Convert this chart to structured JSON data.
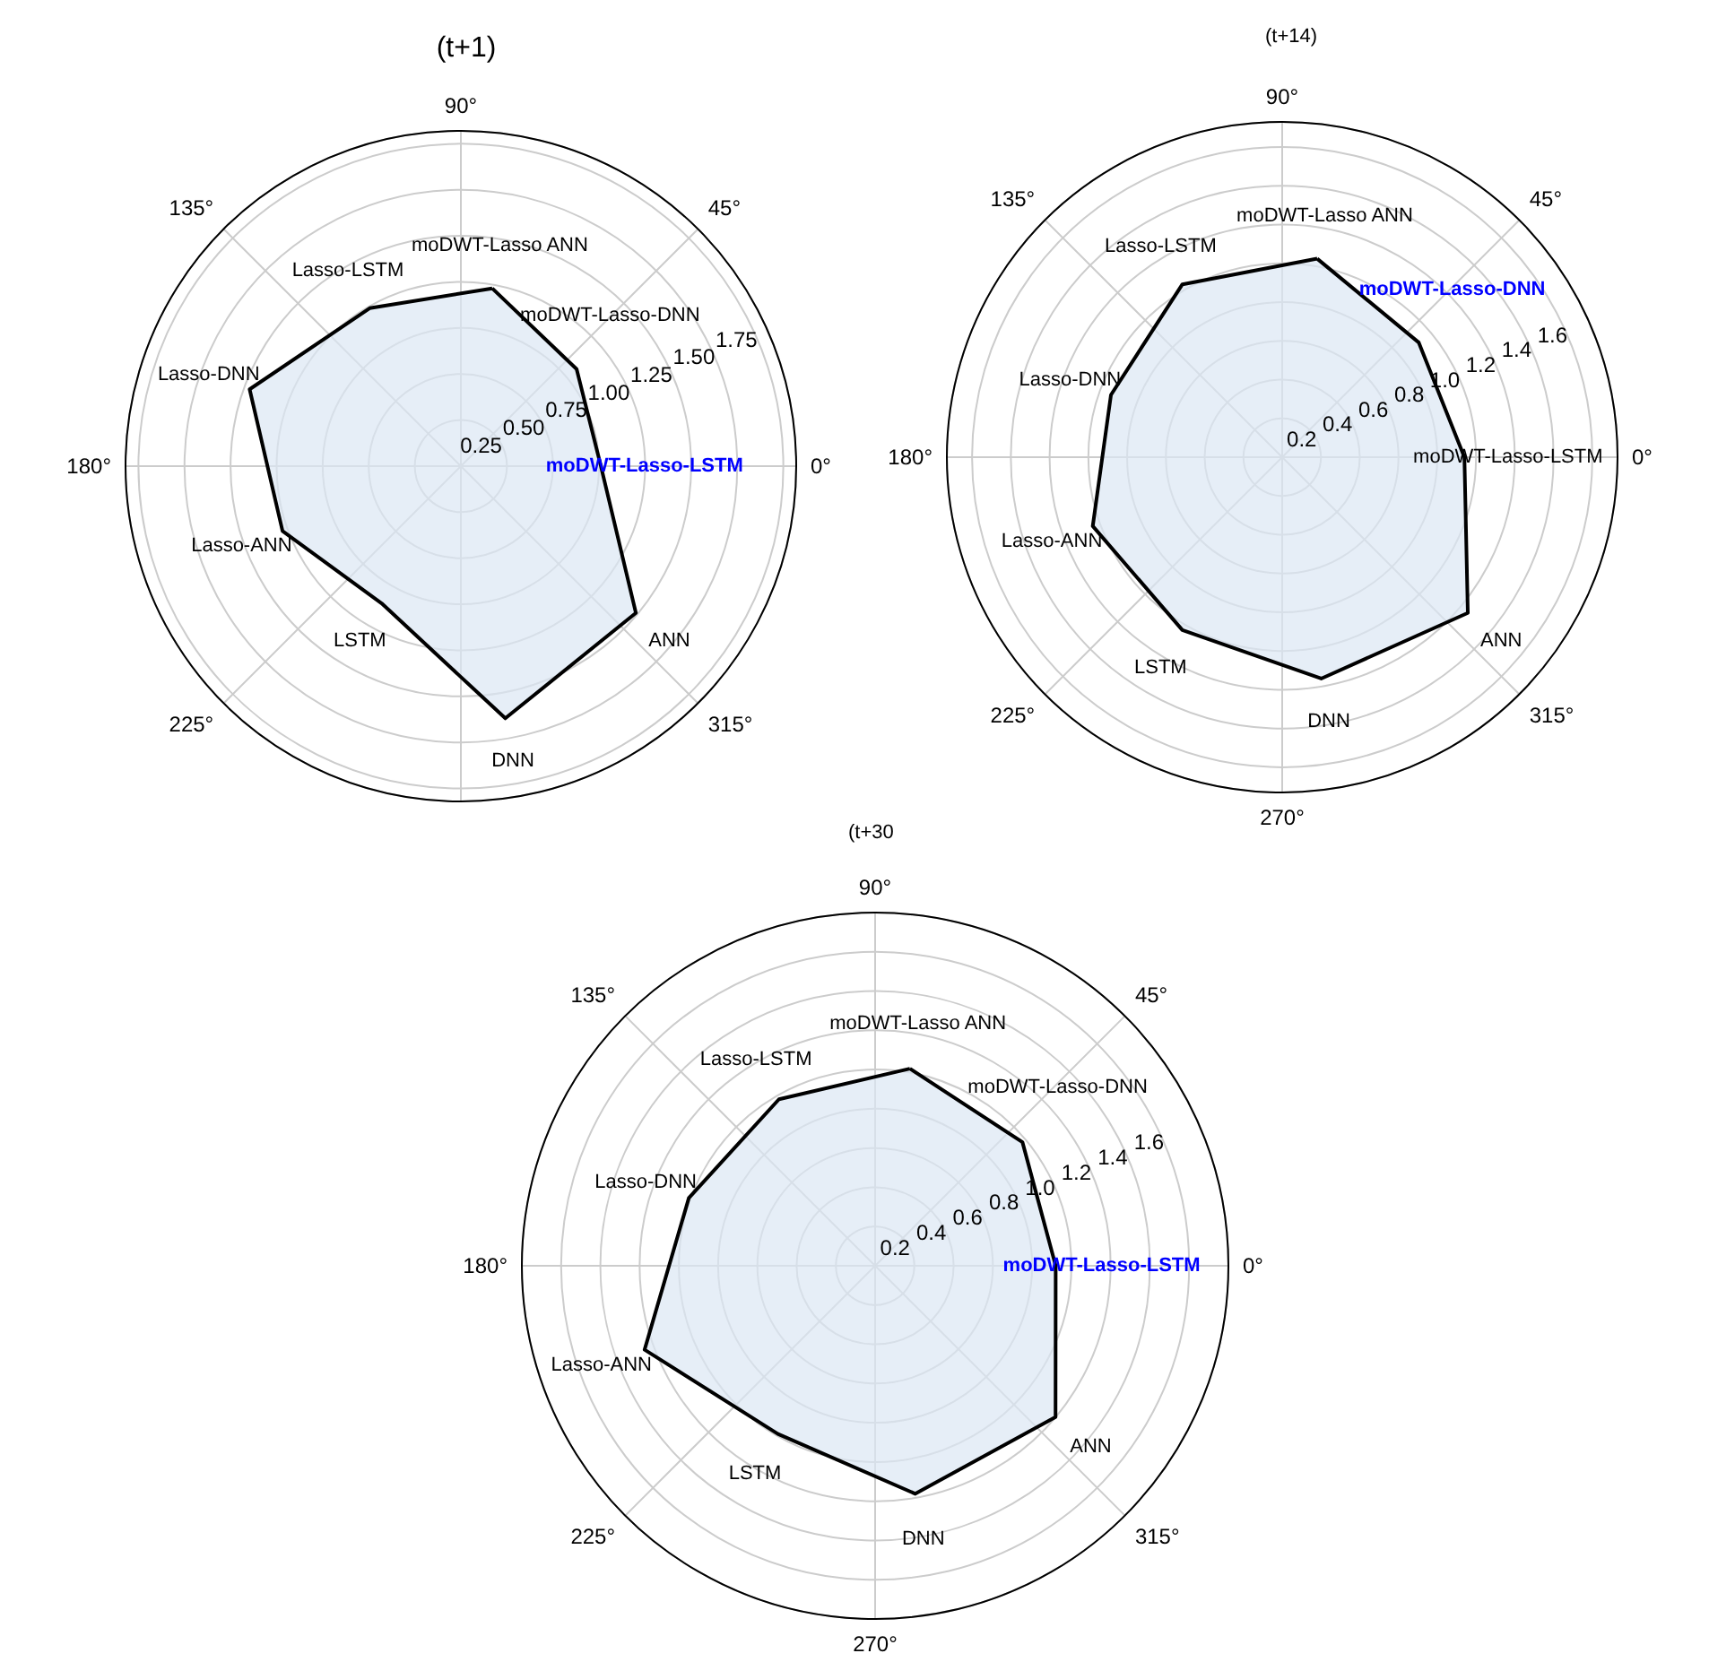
{
  "chart_data": [
    {
      "type": "radar",
      "title": "(t+1)",
      "categories": [
        "moDWT-Lasso ANN",
        "moDWT-Lasso-DNN",
        "moDWT-Lasso-LSTM",
        "ANN",
        "DNN",
        "LSTM",
        "Lasso-ANN",
        "Lasso-DNN",
        "Lasso-LSTM"
      ],
      "series": [
        {
          "color": "#000000",
          "colors": [
            "#000000",
            "#000000",
            "#0000ff",
            "#000000",
            "#000000",
            "#000000",
            "#000000",
            "#000000",
            "#000000"
          ],
          "values": [
            0.98,
            0.82,
            0.76,
            1.24,
            1.39,
            0.86,
            1.03,
            1.22,
            0.99
          ]
        }
      ],
      "ylim": [
        0,
        1.82
      ],
      "yticks": [
        0.25,
        {
          "value": 0.5,
          "label": "0.50"
        },
        0.75,
        {
          "value": 1,
          "label": "1.00"
        },
        1.25,
        {
          "value": 1.5,
          "label": "1.50"
        },
        1.75
      ],
      "annotations": [
        "0°",
        "45°",
        "90°",
        "135°",
        "180°",
        "225°",
        null,
        "315°"
      ],
      "grid": true,
      "marker": "none"
    },
    {
      "type": "radar",
      "title": "(t+14)",
      "categories": [
        "moDWT-Lasso ANN",
        "moDWT-Lasso-DNN",
        "moDWT-Lasso-LSTM",
        "ANN",
        "DNN",
        "LSTM",
        "Lasso-ANN",
        "Lasso-DNN",
        "Lasso-LSTM"
      ],
      "series": [
        {
          "color": "#000000",
          "colors": [
            "#000000",
            "#0000ff",
            "#000000",
            "#000000",
            "#000000",
            "#000000",
            "#000000",
            "#000000",
            "#000000"
          ],
          "values": [
            1.04,
            0.92,
            0.94,
            1.25,
            1.16,
            1.03,
            1.04,
            0.94,
            1.03
          ]
        }
      ],
      "ylim": [
        0,
        1.73
      ],
      "yticks": [
        0.2,
        0.4,
        0.6,
        0.8,
        {
          "value": 1,
          "label": "1.0"
        },
        1.2,
        1.4,
        1.6
      ],
      "annotations": [
        "0°",
        "45°",
        "90°",
        "135°",
        "180°",
        "225°",
        "270°",
        "315°"
      ],
      "grid": true,
      "marker": "none"
    },
    {
      "type": "radar",
      "title": "(t+30",
      "categories": [
        "moDWT-Lasso ANN",
        "moDWT-Lasso-DNN",
        "moDWT-Lasso-LSTM",
        "ANN",
        "DNN",
        "LSTM",
        "Lasso-ANN",
        "Lasso-DNN",
        "Lasso-LSTM"
      ],
      "series": [
        {
          "color": "#000000",
          "colors": [
            "#000000",
            "#000000",
            "#0000ff",
            "#000000",
            "#000000",
            "#000000",
            "#000000",
            "#000000",
            "#000000"
          ],
          "values": [
            1.02,
            0.98,
            0.92,
            1.2,
            1.18,
            0.99,
            1.25,
            1.01,
            0.98
          ]
        }
      ],
      "ylim": [
        0,
        1.8
      ],
      "yticks": [
        0.2,
        0.4,
        0.6,
        0.8,
        {
          "value": 1,
          "label": "1.0"
        },
        1.2,
        1.4,
        1.6
      ],
      "annotations": [
        "0°",
        "45°",
        "90°",
        "135°",
        "180°",
        "225°",
        "270°",
        "315°"
      ],
      "grid": true,
      "marker": "none"
    }
  ]
}
